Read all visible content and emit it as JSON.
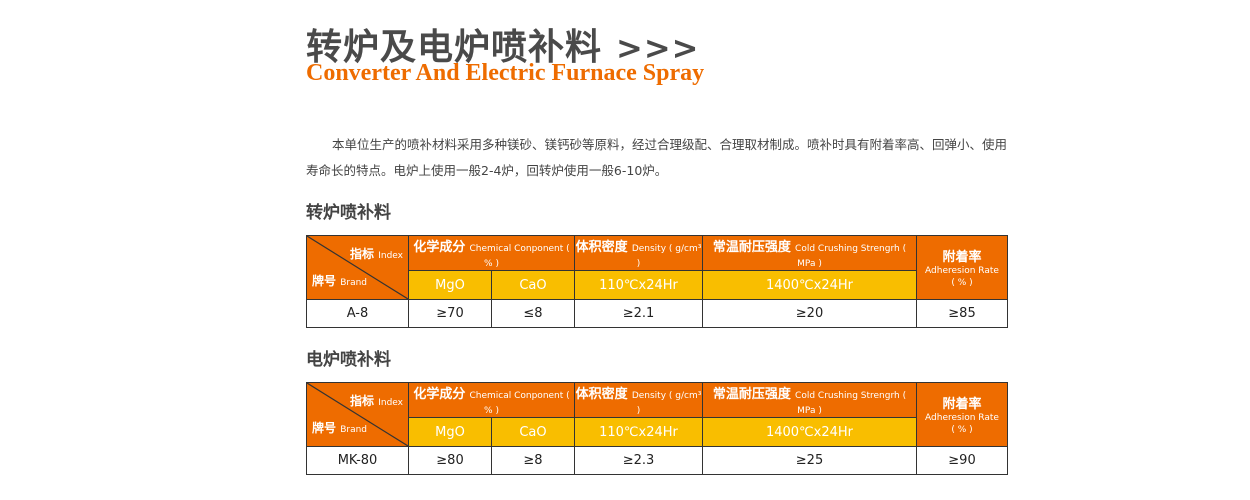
{
  "title": "转炉及电炉喷补料",
  "title_arrows": ">>>",
  "subtitle": "Converter And Electric Furnace Spray",
  "intro": "本单位生产的喷补材料采用多种镁砂、镁钙砂等原料，经过合理级配、合理取材制成。喷补时具有附着率高、回弹小、使用寿命长的特点。电炉上使用一般2-4炉，回转炉使用一般6-10炉。",
  "header": {
    "index_cn": "指标",
    "index_en": "Index",
    "brand_cn": "牌号",
    "brand_en": "Brand",
    "chem_cn": "化学成分",
    "chem_en": "Chemical Conponent ( % )",
    "dens_cn": "体积密度",
    "dens_en": "Density ( g/cm³ )",
    "ccs_cn": "常温耐压强度",
    "ccs_en": "Cold Crushing Strengrh ( MPa )",
    "adh_cn": "附着率",
    "adh_en": "Adheresion Rate",
    "adh_unit": "( % )",
    "mgo": "MgO",
    "cao": "CaO",
    "dens_cond": "110℃x24Hr",
    "ccs_cond": "1400℃x24Hr"
  },
  "colors": {
    "orange": "#ee6c00",
    "yellow": "#f9be00"
  },
  "tables": [
    {
      "section": "转炉喷补料",
      "row": [
        "A-8",
        "≥70",
        "≤8",
        "≥2.1",
        "≥20",
        "≥85"
      ]
    },
    {
      "section": "电炉喷补料",
      "row": [
        "MK-80",
        "≥80",
        "≥8",
        "≥2.3",
        "≥25",
        "≥90"
      ]
    }
  ]
}
